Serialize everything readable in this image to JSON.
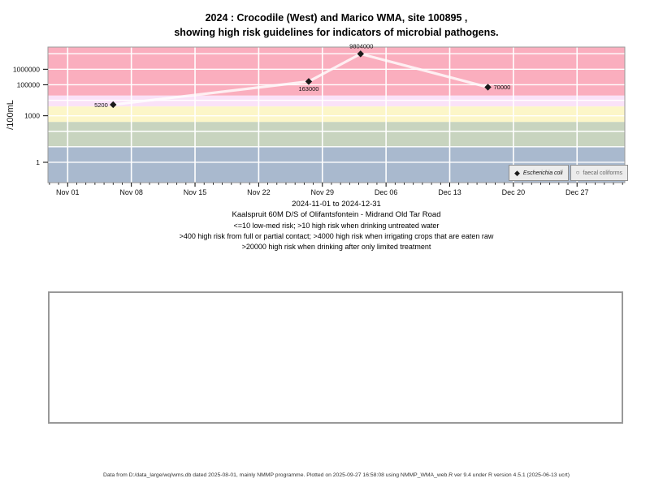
{
  "title": {
    "line1": "2024 : Crocodile (West) and Marico WMA, site 100895 ,",
    "line2": "showing high risk guidelines for indicators of microbial pathogens."
  },
  "chart_data": {
    "type": "line",
    "ylabel": "/100mL",
    "xlabel": "2024-11-01 to 2024-12-31",
    "y_log": true,
    "y_tick_values": [
      1,
      1000,
      100000,
      1000000
    ],
    "y_tick_labels": [
      "1",
      "1000",
      "100000",
      "1000000"
    ],
    "x_tick_labels": [
      "Nov 01",
      "Nov 08",
      "Nov 15",
      "Nov 22",
      "Nov 29",
      "Dec 06",
      "Dec 13",
      "Dec 20",
      "Dec 27"
    ],
    "x_tick_days": [
      0,
      7,
      14,
      21,
      28,
      35,
      42,
      49,
      56
    ],
    "x_axis_range_days": [
      -2.17,
      61.25
    ],
    "y_axis_range_log": [
      -1.31,
      7.43
    ],
    "grid": "white weekly vertical and decade horizontal lines",
    "risk_bands": [
      {
        "min_value": 20000,
        "max_value": null,
        "color": "#FAAEBE",
        "label": ">20000 high risk when drinking after only limited treatment"
      },
      {
        "min_value": 4000,
        "max_value": 20000,
        "color": "#FAE2F8",
        "label": ">4000 high risk when irrigating crops that are eaten raw"
      },
      {
        "min_value": 400,
        "max_value": 4000,
        "color": "#FCF6C8",
        "label": ">400 high risk from full or partial contact"
      },
      {
        "min_value": 10,
        "max_value": 400,
        "color": "#C8D4BF",
        "label": ">10 high risk when drinking untreated water"
      },
      {
        "min_value": null,
        "max_value": 10,
        "color": "#A9B9CE",
        "label": "<=10 low-med risk"
      }
    ],
    "series": [
      {
        "name": "Escherichia coli",
        "symbol": "filled-diamond",
        "marker_color": "#1a1a1a",
        "line_color": "rgba(255,255,255,0.8)",
        "points": [
          {
            "day": 5.0,
            "value": 5200,
            "label": "5200",
            "label_pos": "left"
          },
          {
            "day": 26.5,
            "value": 163000,
            "label": "163000",
            "label_pos": "below"
          },
          {
            "day": 32.2,
            "value": 9804000,
            "label": "9804000",
            "label_pos": "above"
          },
          {
            "day": 46.2,
            "value": 70000,
            "label": "70000",
            "label_pos": "right"
          }
        ]
      },
      {
        "name": "faecal coliforms",
        "symbol": "open-circle",
        "points": []
      }
    ],
    "legend": {
      "position": "bottom-right-inside",
      "entries": [
        {
          "label": "Escherichia coli",
          "symbol": "filled-diamond"
        },
        {
          "label": "faecal coliforms",
          "symbol": "open-circle"
        }
      ]
    }
  },
  "subtitle": {
    "site_name": "Kaalspruit 60M D/S of Olifantsfontein - Midrand Old Tar Road",
    "risk_line1": "<=10 low-med risk; >10 high risk when drinking untreated water",
    "risk_line2": ">400 high risk from full or partial contact; >4000 high risk when irrigating crops that are eaten raw",
    "risk_line3": ">20000 high risk when drinking after only limited treatment"
  },
  "footer": {
    "text": "Data from D:/data_large/wq/wms.db dated 2025-08-01, mainly NMMP programme. Plotted on 2025-09-27 16:58:08 using NMMP_WMA_web.R ver 9.4 under R version 4.5.1 (2025-06-13 ucrt)"
  }
}
